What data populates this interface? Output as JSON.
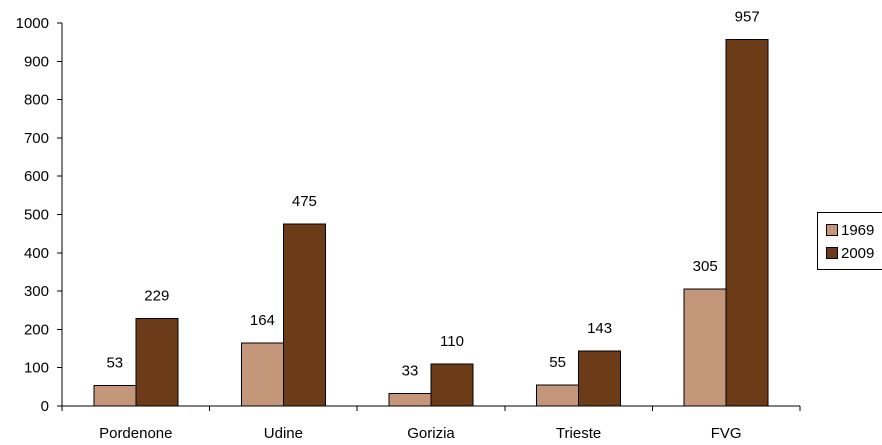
{
  "chart_data": {
    "type": "bar",
    "title": "",
    "xlabel": "",
    "ylabel": "",
    "categories": [
      "Pordenone",
      "Udine",
      "Gorizia",
      "Trieste",
      "FVG"
    ],
    "series": [
      {
        "name": "1969",
        "values": [
          53,
          164,
          33,
          55,
          305
        ],
        "color": "#c4967a"
      },
      {
        "name": "2009",
        "values": [
          229,
          475,
          110,
          143,
          957
        ],
        "color": "#6b3c17"
      }
    ],
    "ylim": [
      0,
      1000
    ],
    "yticks": [
      "0",
      "100",
      "200",
      "300",
      "400",
      "500",
      "600",
      "700",
      "800",
      "900",
      "1000"
    ],
    "grid": false,
    "legend_position": "right"
  }
}
